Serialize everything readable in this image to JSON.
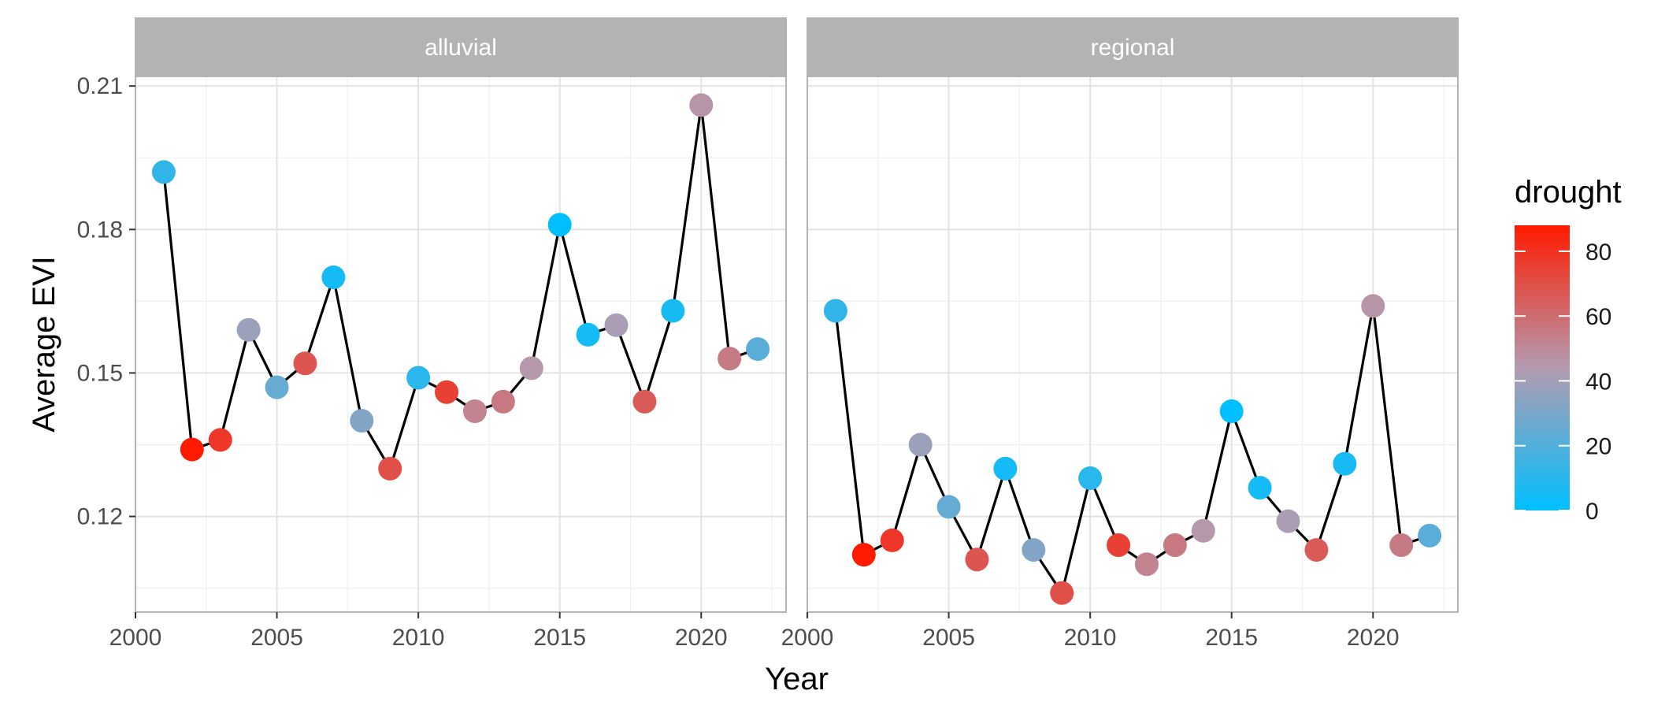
{
  "chart_data": {
    "type": "line",
    "xlabel": "Year",
    "ylabel": "Average EVI",
    "facets": [
      "alluvial",
      "regional"
    ],
    "xlim": [
      2000,
      2023
    ],
    "ylim": [
      0.1,
      0.212
    ],
    "x_ticks": [
      2000,
      2005,
      2010,
      2015,
      2020
    ],
    "x_tick_labels": [
      "2000",
      "2005",
      "2010",
      "2015",
      "2020"
    ],
    "y_ticks": [
      0.12,
      0.15,
      0.18,
      0.21
    ],
    "y_tick_labels": [
      "0.12",
      "0.15",
      "0.18",
      "0.21"
    ],
    "grid": true,
    "color_legend": {
      "title": "drought",
      "min": 0,
      "max": 88,
      "ticks": [
        0,
        20,
        40,
        60,
        80
      ],
      "tick_labels": [
        "0",
        "20",
        "40",
        "60",
        "80"
      ],
      "low_color": "#00bfff",
      "mid_color": "#b39bb0",
      "high_color": "#ff1a00",
      "position": "right"
    },
    "x": [
      2001,
      2002,
      2003,
      2004,
      2005,
      2006,
      2007,
      2008,
      2009,
      2010,
      2011,
      2012,
      2013,
      2014,
      2015,
      2016,
      2017,
      2018,
      2019,
      2020,
      2021,
      2022
    ],
    "drought": [
      12,
      88,
      78,
      38,
      25,
      68,
      5,
      32,
      70,
      10,
      75,
      52,
      56,
      45,
      0,
      5,
      42,
      66,
      6,
      46,
      55,
      22
    ],
    "series": [
      {
        "facet": "alluvial",
        "values": [
          0.192,
          0.134,
          0.136,
          0.159,
          0.147,
          0.152,
          0.17,
          0.14,
          0.13,
          0.149,
          0.146,
          0.142,
          0.144,
          0.151,
          0.181,
          0.158,
          0.16,
          0.144,
          0.163,
          0.206,
          0.153,
          0.155
        ]
      },
      {
        "facet": "regional",
        "values": [
          0.163,
          0.112,
          0.115,
          0.135,
          0.122,
          0.111,
          0.13,
          0.113,
          0.104,
          0.128,
          0.114,
          0.11,
          0.114,
          0.117,
          0.142,
          0.126,
          0.119,
          0.113,
          0.131,
          0.164,
          0.114,
          0.116
        ]
      }
    ]
  }
}
